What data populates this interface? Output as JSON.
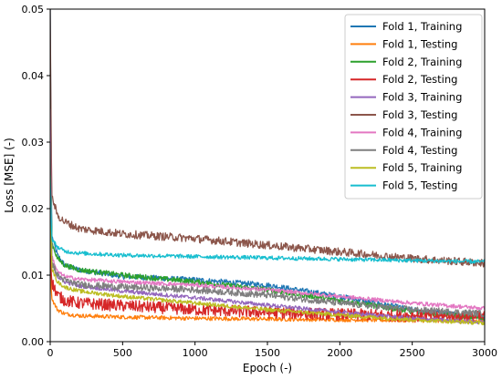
{
  "chart_data": {
    "type": "line",
    "title": "",
    "xlabel": "Epoch (-)",
    "ylabel": "Loss [MSE] (-)",
    "xlim": [
      0,
      3000
    ],
    "ylim": [
      0,
      0.05
    ],
    "xticks": [
      0,
      500,
      1000,
      1500,
      2000,
      2500,
      3000
    ],
    "yticks": [
      0.0,
      0.01,
      0.02,
      0.03,
      0.04,
      0.05
    ],
    "xtick_labels": [
      "0",
      "500",
      "1000",
      "1500",
      "2000",
      "2500",
      "3000"
    ],
    "ytick_labels": [
      "0.00",
      "0.01",
      "0.02",
      "0.03",
      "0.04",
      "0.05"
    ],
    "grid": false,
    "legend_position": "top-right",
    "series": [
      {
        "name": "Fold 1, Training",
        "color": "#1f77b4",
        "noise": 0.0004,
        "x": [
          0,
          10,
          50,
          100,
          200,
          500,
          1000,
          1500,
          2000,
          2500,
          3000
        ],
        "y": [
          0.05,
          0.016,
          0.013,
          0.0115,
          0.0108,
          0.0098,
          0.0093,
          0.0085,
          0.0068,
          0.0048,
          0.0036
        ]
      },
      {
        "name": "Fold 1, Testing",
        "color": "#ff7f0e",
        "noise": 0.0003,
        "x": [
          0,
          10,
          50,
          100,
          200,
          500,
          1000,
          1500,
          2000,
          2500,
          3000
        ],
        "y": [
          0.012,
          0.0065,
          0.0048,
          0.0042,
          0.0039,
          0.0037,
          0.0035,
          0.0034,
          0.0033,
          0.0032,
          0.0031
        ]
      },
      {
        "name": "Fold 2, Training",
        "color": "#2ca02c",
        "noise": 0.0004,
        "x": [
          0,
          10,
          50,
          100,
          200,
          500,
          1000,
          1500,
          2000,
          2500,
          3000
        ],
        "y": [
          0.04,
          0.015,
          0.0125,
          0.0115,
          0.0108,
          0.01,
          0.009,
          0.0078,
          0.0062,
          0.0045,
          0.0035
        ]
      },
      {
        "name": "Fold 2, Testing",
        "color": "#d62728",
        "noise": 0.0009,
        "x": [
          0,
          10,
          50,
          100,
          200,
          500,
          1000,
          1500,
          2000,
          2500,
          3000
        ],
        "y": [
          0.014,
          0.009,
          0.007,
          0.0062,
          0.0058,
          0.0054,
          0.0048,
          0.0044,
          0.0041,
          0.0039,
          0.0037
        ]
      },
      {
        "name": "Fold 3, Training",
        "color": "#9467bd",
        "noise": 0.0003,
        "x": [
          0,
          10,
          50,
          100,
          200,
          500,
          1000,
          1500,
          2000,
          2500,
          3000
        ],
        "y": [
          0.03,
          0.012,
          0.0098,
          0.009,
          0.0084,
          0.0076,
          0.0066,
          0.0055,
          0.0044,
          0.0035,
          0.0029
        ]
      },
      {
        "name": "Fold 3, Testing",
        "color": "#8c564b",
        "noise": 0.0006,
        "x": [
          0,
          10,
          50,
          100,
          200,
          500,
          1000,
          1500,
          2000,
          2500,
          3000
        ],
        "y": [
          0.05,
          0.022,
          0.019,
          0.018,
          0.017,
          0.0162,
          0.0155,
          0.0145,
          0.0135,
          0.0125,
          0.0118
        ]
      },
      {
        "name": "Fold 4, Training",
        "color": "#e377c2",
        "noise": 0.0003,
        "x": [
          0,
          10,
          50,
          100,
          200,
          500,
          1000,
          1500,
          2000,
          2500,
          3000
        ],
        "y": [
          0.035,
          0.013,
          0.0105,
          0.0098,
          0.0094,
          0.009,
          0.0085,
          0.0078,
          0.0068,
          0.0058,
          0.005
        ]
      },
      {
        "name": "Fold 4, Testing",
        "color": "#7f7f7f",
        "noise": 0.0005,
        "x": [
          0,
          10,
          50,
          100,
          200,
          500,
          1000,
          1500,
          2000,
          2500,
          3000
        ],
        "y": [
          0.03,
          0.012,
          0.01,
          0.0092,
          0.0086,
          0.0082,
          0.0078,
          0.007,
          0.0058,
          0.0048,
          0.0042
        ]
      },
      {
        "name": "Fold 5, Training",
        "color": "#bcbd22",
        "noise": 0.0003,
        "x": [
          0,
          10,
          50,
          100,
          200,
          500,
          1000,
          1500,
          2000,
          2500,
          3000
        ],
        "y": [
          0.025,
          0.011,
          0.009,
          0.0082,
          0.0076,
          0.0068,
          0.0058,
          0.0048,
          0.004,
          0.0033,
          0.0028
        ]
      },
      {
        "name": "Fold 5, Testing",
        "color": "#17becf",
        "noise": 0.0003,
        "x": [
          0,
          10,
          50,
          100,
          200,
          500,
          1000,
          1500,
          2000,
          2500,
          3000
        ],
        "y": [
          0.025,
          0.0155,
          0.0142,
          0.0136,
          0.0133,
          0.013,
          0.0128,
          0.0126,
          0.0124,
          0.0122,
          0.012
        ]
      }
    ]
  }
}
